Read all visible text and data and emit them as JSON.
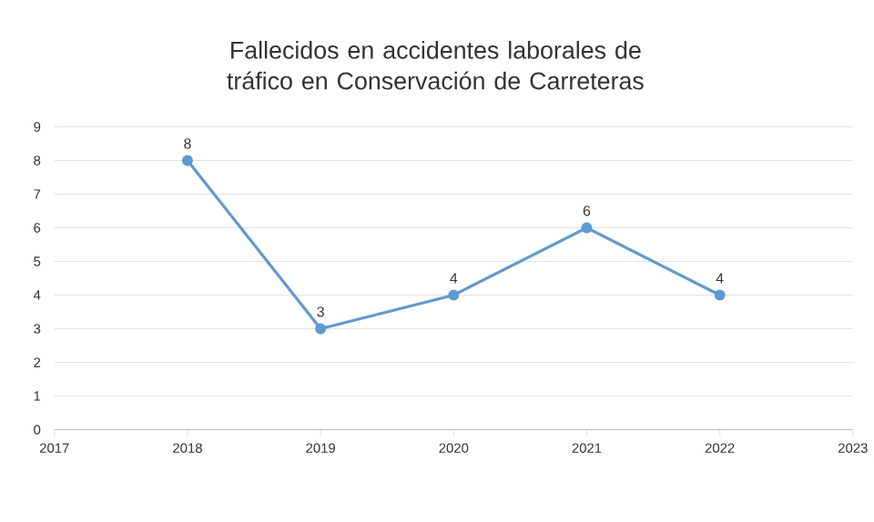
{
  "chart_data": {
    "type": "line",
    "title": "Fallecidos en  accidentes laborales de tráfico en Conservación de Carreteras",
    "x": [
      2018,
      2019,
      2020,
      2021,
      2022
    ],
    "values": [
      8,
      3,
      4,
      6,
      4
    ],
    "color": "#5b9bd5",
    "marker": "circle",
    "line_style": "solid",
    "data_labels": true,
    "grid": "y",
    "xlim": [
      2017,
      2023
    ],
    "xticks": [
      2017,
      2018,
      2019,
      2020,
      2021,
      2022,
      2023
    ],
    "ylim": [
      0,
      9
    ],
    "yticks": [
      0,
      1,
      2,
      3,
      4,
      5,
      6,
      7,
      8,
      9
    ]
  }
}
